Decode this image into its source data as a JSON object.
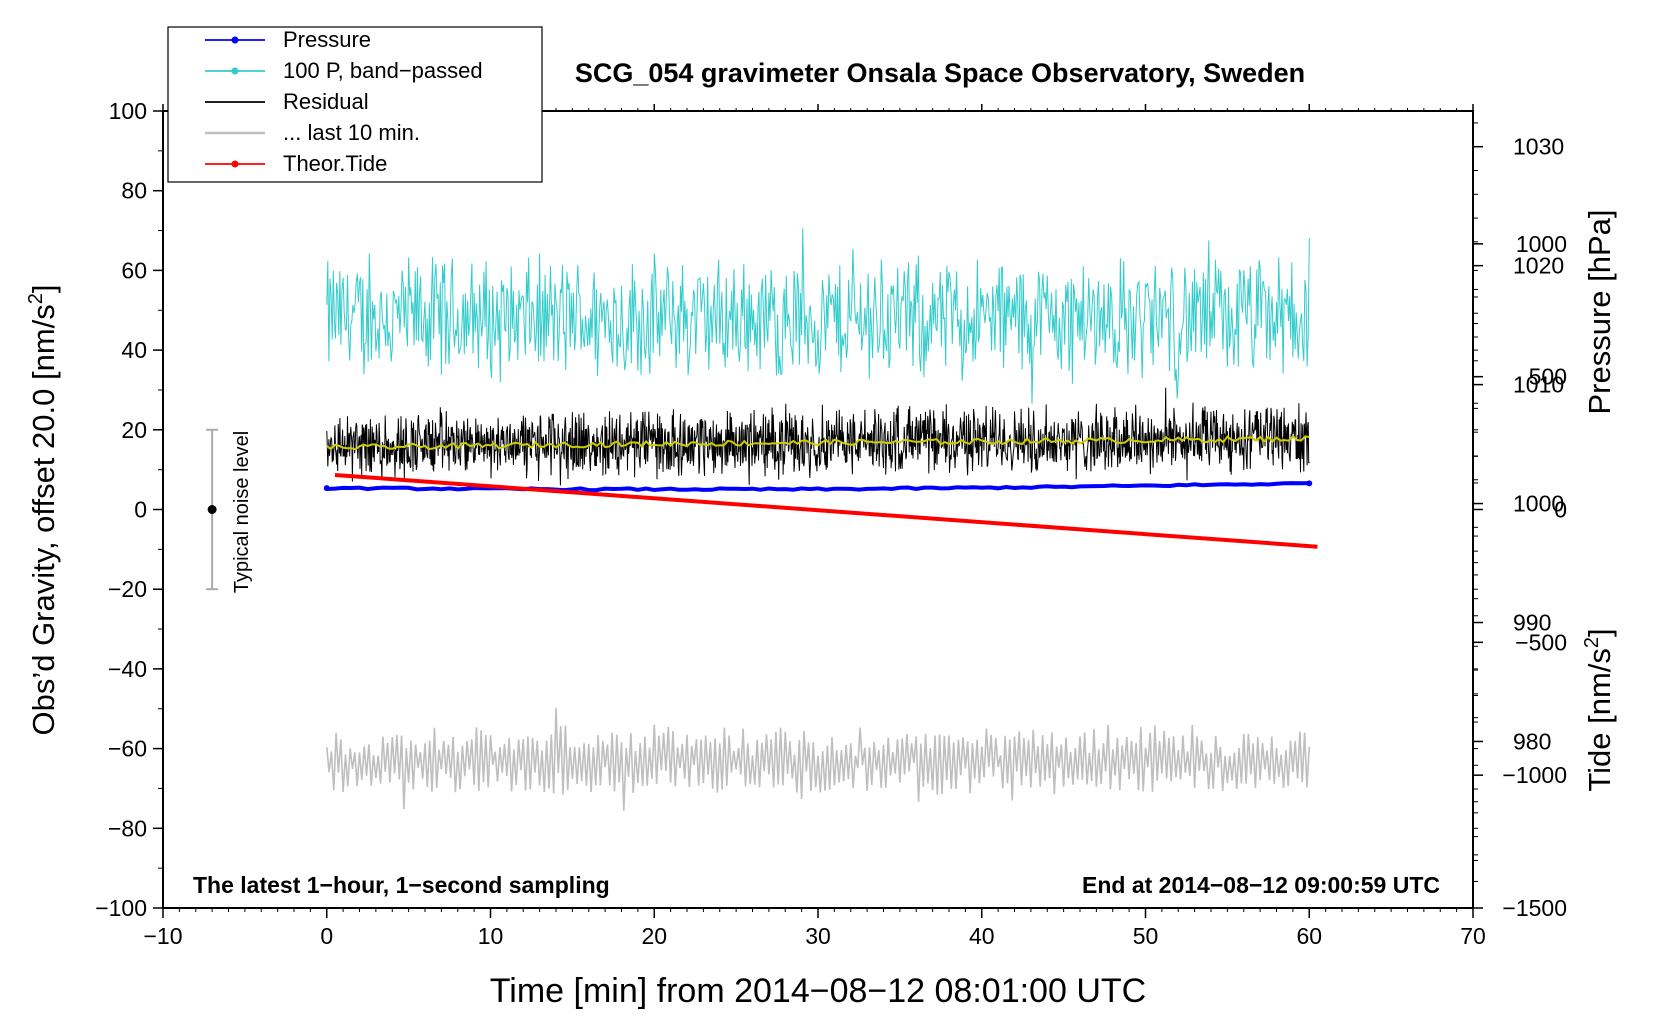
{
  "chart_data": {
    "type": "line",
    "title": "SCG_054 gravimeter Onsala Space Observatory, Sweden",
    "xlabel": "Time [min] from 2014−08−12 08:01:00 UTC",
    "ylabel_left": "Obs’d Gravity, offset 20.0 [nm/s",
    "ylabel_left_sup": "2",
    "ylabel_left_end": "]",
    "ylabel_right_pressure": "Pressure [hPa]",
    "ylabel_right_tide": "Tide [nm/s",
    "ylabel_right_tide_sup": "2",
    "ylabel_right_tide_end": "]",
    "xlim": [
      -10,
      70
    ],
    "ylim": [
      -100,
      100
    ],
    "pressure_lim": [
      966,
      1033
    ],
    "tide_lim": [
      -1500,
      1500
    ],
    "x_ticks": [
      "−10",
      "0",
      "10",
      "20",
      "30",
      "40",
      "50",
      "60",
      "70"
    ],
    "x_tick_values": [
      -10,
      0,
      10,
      20,
      30,
      40,
      50,
      60,
      70
    ],
    "y_ticks": [
      "−100",
      "−80",
      "−60",
      "−40",
      "−20",
      "0",
      "20",
      "40",
      "60",
      "80",
      "100"
    ],
    "y_tick_values": [
      -100,
      -80,
      -60,
      -40,
      -20,
      0,
      20,
      40,
      60,
      80,
      100
    ],
    "pressure_ticks": [
      "980",
      "990",
      "1000",
      "1010",
      "1020",
      "1030"
    ],
    "pressure_tick_values": [
      980,
      990,
      1000,
      1010,
      1020,
      1030
    ],
    "tide_ticks": [
      "−1500",
      "−1000",
      "−500",
      "0",
      "500",
      "1000"
    ],
    "tide_tick_values": [
      -1500,
      -1000,
      -500,
      0,
      500,
      1000
    ],
    "legend": [
      {
        "label": "Pressure",
        "color": "#0000ff",
        "marker": true
      },
      {
        "label": "100 P, band−passed",
        "color": "#33cccc",
        "marker": true
      },
      {
        "label": "Residual",
        "color": "#000000",
        "marker": false
      },
      {
        "label": "... last 10 min.",
        "color": "#bfbfbf",
        "marker": false
      },
      {
        "label": "Theor.Tide",
        "color": "#ff0000",
        "marker": true
      }
    ],
    "legend_position": "top-left",
    "annotation_left": "The latest 1−hour, 1−second sampling",
    "annotation_right": "End at 2014−08−12 09:00:59 UTC",
    "noise_label": "Typical noise level",
    "noise_bar": {
      "x": -7,
      "center": 0,
      "low": -20,
      "high": 20
    },
    "series": [
      {
        "name": "Pressure",
        "axis": "pressure",
        "color": "#0000ff",
        "x": [
          0,
          15,
          30,
          45,
          60
        ],
        "values": [
          1001.3,
          1001.2,
          1001.2,
          1001.4,
          1001.7
        ]
      },
      {
        "name": "100 P, band−passed",
        "axis": "left",
        "color": "#33cccc",
        "center": 48,
        "amplitude": 16,
        "x_range": [
          0,
          60
        ]
      },
      {
        "name": "Residual",
        "axis": "left",
        "color": "#000000",
        "x": [
          0,
          15,
          30,
          45,
          60
        ],
        "values": [
          16,
          16.5,
          17,
          17.5,
          18
        ],
        "amplitude": 18
      },
      {
        "name": "Residual smoothed",
        "axis": "left",
        "color": "#cccc00",
        "x": [
          0,
          15,
          30,
          45,
          60
        ],
        "values": [
          15.5,
          16.3,
          16.8,
          17.2,
          17.8
        ]
      },
      {
        "name": "... last 10 min.",
        "axis": "left",
        "color": "#bfbfbf",
        "center": -63,
        "amplitude": 14,
        "x_range": [
          0,
          60
        ]
      },
      {
        "name": "Theor.Tide",
        "axis": "tide",
        "color": "#ff0000",
        "x": [
          0.5,
          60.5
        ],
        "values": [
          130,
          -140
        ]
      }
    ]
  }
}
